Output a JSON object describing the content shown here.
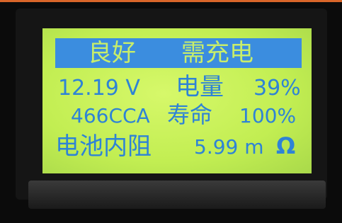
{
  "status_bar": {
    "left": "良好",
    "right": "需充电"
  },
  "rows": [
    {
      "voltage": "12.19 V",
      "label": "电量",
      "value": "39%"
    },
    {
      "cca": "466CCA",
      "label": "寿命",
      "value": "100%"
    },
    {
      "label": "电池内阻",
      "value": "5.99 m",
      "unit": "Ω"
    }
  ]
}
